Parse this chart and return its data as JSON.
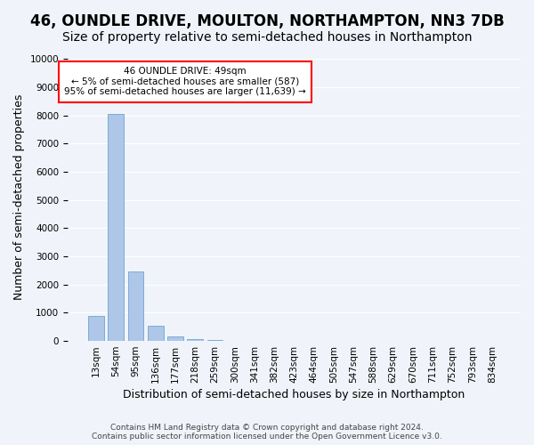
{
  "title": "46, OUNDLE DRIVE, MOULTON, NORTHAMPTON, NN3 7DB",
  "subtitle": "Size of property relative to semi-detached houses in Northampton",
  "xlabel": "Distribution of semi-detached houses by size in Northampton",
  "ylabel": "Number of semi-detached properties",
  "categories": [
    "13sqm",
    "54sqm",
    "95sqm",
    "136sqm",
    "177sqm",
    "218sqm",
    "259sqm",
    "300sqm",
    "341sqm",
    "382sqm",
    "423sqm",
    "464sqm",
    "505sqm",
    "547sqm",
    "588sqm",
    "629sqm",
    "670sqm",
    "711sqm",
    "752sqm",
    "793sqm",
    "834sqm"
  ],
  "bar_values": [
    900,
    8050,
    2450,
    550,
    160,
    60,
    25,
    10,
    5,
    4,
    3,
    2,
    1,
    1,
    1,
    0,
    0,
    0,
    0,
    0,
    0
  ],
  "bar_color": "#aec6e8",
  "bar_edge_color": "#5a9bc8",
  "annotation_text": "46 OUNDLE DRIVE: 49sqm\n← 5% of semi-detached houses are smaller (587)\n95% of semi-detached houses are larger (11,639) →",
  "annotation_box_color": "white",
  "annotation_box_edge_color": "red",
  "ylim": [
    0,
    10200
  ],
  "yticks": [
    0,
    1000,
    2000,
    3000,
    4000,
    5000,
    6000,
    7000,
    8000,
    9000,
    10000
  ],
  "footer": "Contains HM Land Registry data © Crown copyright and database right 2024.\nContains public sector information licensed under the Open Government Licence v3.0.",
  "background_color": "#f0f4fa",
  "grid_color": "white",
  "title_fontsize": 12,
  "subtitle_fontsize": 10,
  "axis_label_fontsize": 9,
  "tick_fontsize": 7.5
}
